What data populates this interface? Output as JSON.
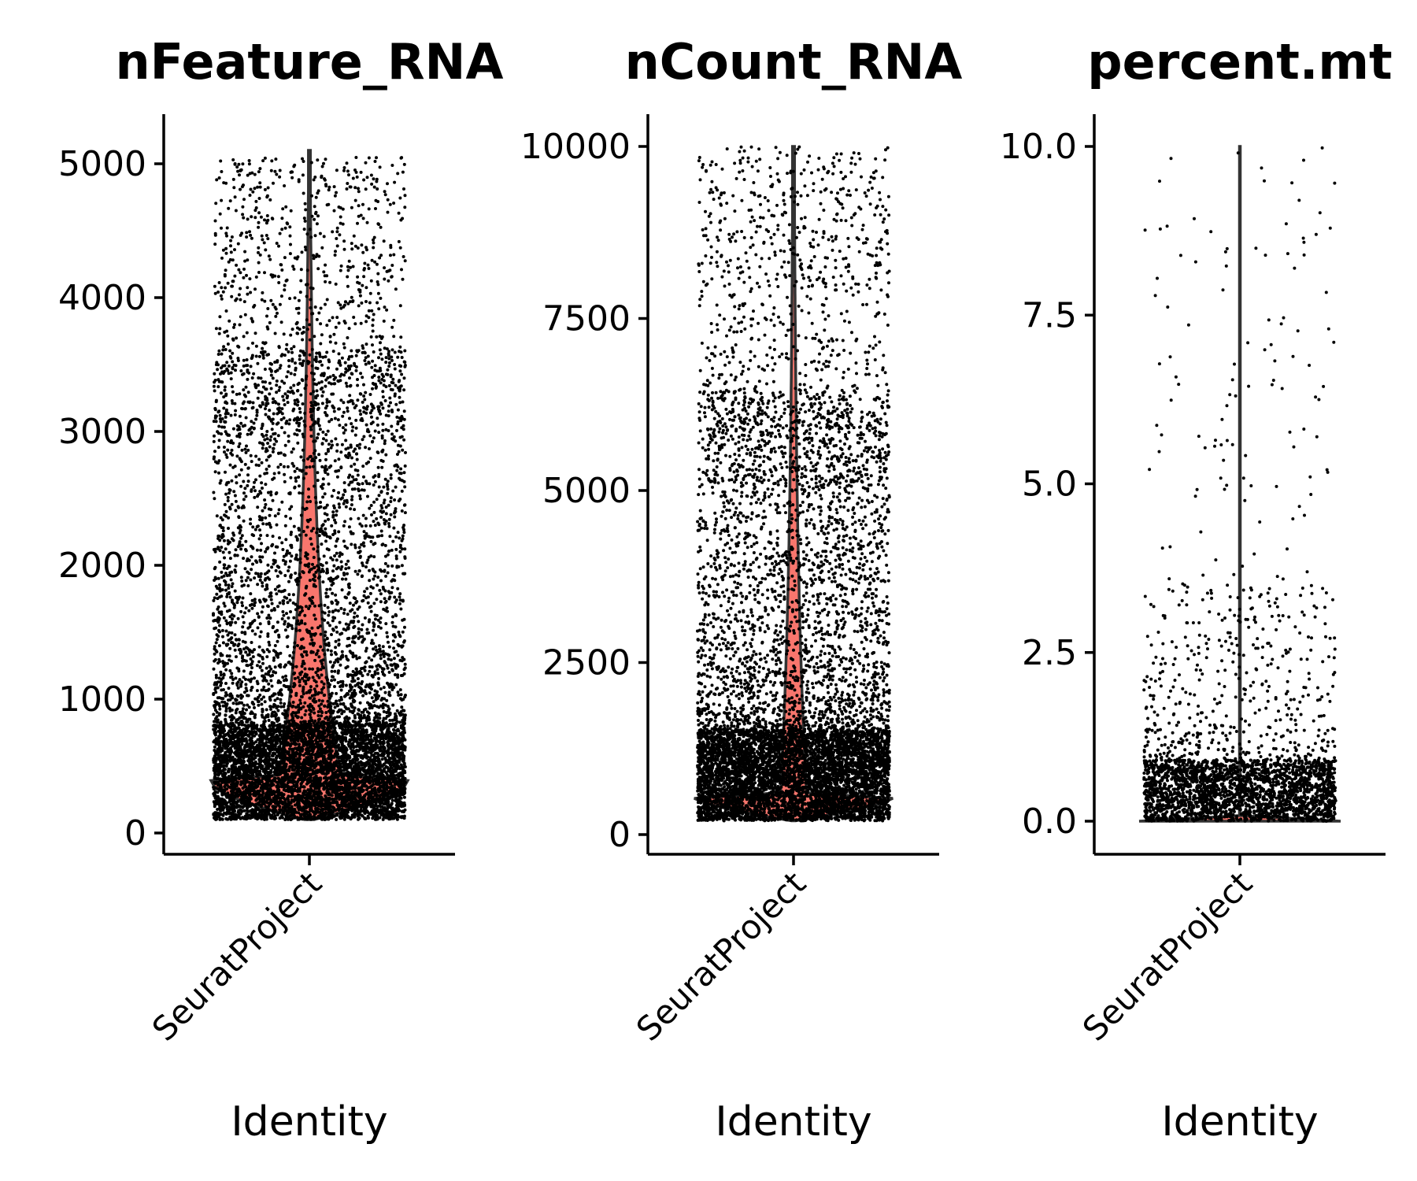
{
  "chart_data": [
    {
      "type": "violin",
      "title": "nFeature_RNA",
      "xlabel": "Identity",
      "categories": [
        "SeuratProject"
      ],
      "ylim": [
        0,
        5400
      ],
      "yticks": [
        0,
        1000,
        2000,
        3000,
        4000,
        5000
      ],
      "ytick_labels": [
        "0",
        "1000",
        "2000",
        "3000",
        "4000",
        "5000"
      ],
      "violin_color": "#F8766D",
      "summary": {
        "min": 100,
        "mode": 350,
        "max": 5100,
        "median": 700
      },
      "jitter_points": true
    },
    {
      "type": "violin",
      "title": "nCount_RNA",
      "xlabel": "Identity",
      "categories": [
        "SeuratProject"
      ],
      "ylim": [
        0,
        10500
      ],
      "yticks": [
        0,
        2500,
        5000,
        7500,
        10000
      ],
      "ytick_labels": [
        "0",
        "2500",
        "5000",
        "7500",
        "10000"
      ],
      "violin_color": "#F8766D",
      "summary": {
        "min": 200,
        "mode": 420,
        "max": 10000,
        "median": 1000
      },
      "jitter_points": true
    },
    {
      "type": "violin",
      "title": "percent.mt",
      "xlabel": "Identity",
      "categories": [
        "SeuratProject"
      ],
      "ylim": [
        0,
        10.5
      ],
      "yticks": [
        0,
        2.5,
        5,
        7.5,
        10
      ],
      "ytick_labels": [
        "0.0",
        "2.5",
        "5.0",
        "7.5",
        "10.0"
      ],
      "violin_color": "#F8766D",
      "summary": {
        "min": 0,
        "mode": 0,
        "max": 10,
        "median": 0.1
      },
      "jitter_points": true
    }
  ]
}
